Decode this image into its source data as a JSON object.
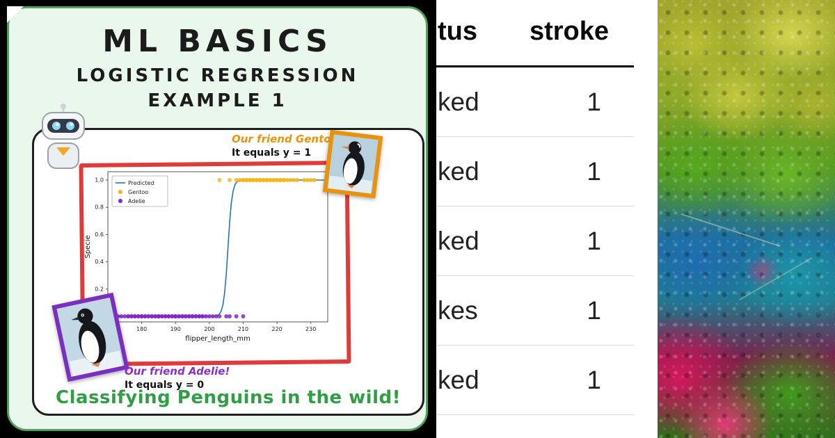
{
  "card": {
    "title": "ML BASICS",
    "subtitle": "LOGISTIC REGRESSION",
    "subtitle2": "EXAMPLE 1",
    "notes": {
      "gentoo1": "Our friend Gentoo!",
      "gentoo2": "It equals y = 1",
      "adelie1": "Our friend Adelie!",
      "adelie2": "It equals y = 0"
    },
    "footer": "Classifying Penguins in the wild!",
    "colors": {
      "card_bg": "#e9f7ec",
      "card_border": "#54a05e",
      "frame_red": "#df3b3b",
      "gentoo_orange": "#e8930c",
      "adelie_purple": "#8b2fc9",
      "footer_green": "#2f9e44"
    }
  },
  "chart_data": {
    "type": "scatter",
    "title": "",
    "xlabel": "flipper_length_mm",
    "ylabel": "Specie",
    "xlim": [
      170,
      235
    ],
    "ylim": [
      -0.04,
      1.04
    ],
    "xticks": [
      180,
      190,
      200,
      210,
      220,
      230
    ],
    "yticks": [
      0.2,
      0.4,
      0.6,
      0.8,
      1.0
    ],
    "grid": false,
    "legend_position": "upper left",
    "series": [
      {
        "name": "Predicted",
        "kind": "line",
        "color": "#1f77b4",
        "model": "logistic",
        "midpoint": 205.5,
        "steepness": 1.6
      },
      {
        "name": "Gentoo",
        "kind": "scatter",
        "color": "#fdb515",
        "y": 1,
        "x": [
          203,
          206,
          208,
          209,
          210,
          210,
          211,
          211,
          212,
          212,
          213,
          213,
          214,
          214,
          215,
          215,
          215,
          216,
          216,
          217,
          217,
          218,
          218,
          219,
          219,
          220,
          220,
          221,
          221,
          222,
          222,
          223,
          224,
          225,
          226,
          228,
          229,
          230,
          231
        ]
      },
      {
        "name": "Adelie",
        "kind": "scatter",
        "color": "#8426c9",
        "y": 0,
        "x": [
          172,
          173,
          174,
          175,
          176,
          176,
          177,
          177,
          178,
          178,
          179,
          179,
          180,
          180,
          180,
          181,
          181,
          182,
          182,
          183,
          183,
          184,
          184,
          185,
          185,
          185,
          186,
          186,
          187,
          187,
          188,
          188,
          189,
          189,
          190,
          190,
          190,
          191,
          191,
          192,
          192,
          193,
          193,
          194,
          194,
          195,
          195,
          196,
          196,
          197,
          197,
          198,
          198,
          199,
          200,
          201,
          202,
          203,
          205,
          206,
          208,
          210
        ]
      }
    ]
  },
  "table": {
    "headers": [
      "tus",
      "stroke"
    ],
    "rows": [
      {
        "label": "ked",
        "value": "1"
      },
      {
        "label": "ked",
        "value": "1"
      },
      {
        "label": "ked",
        "value": "1"
      },
      {
        "label": "kes",
        "value": "1"
      },
      {
        "label": "ked",
        "value": "1"
      }
    ]
  }
}
